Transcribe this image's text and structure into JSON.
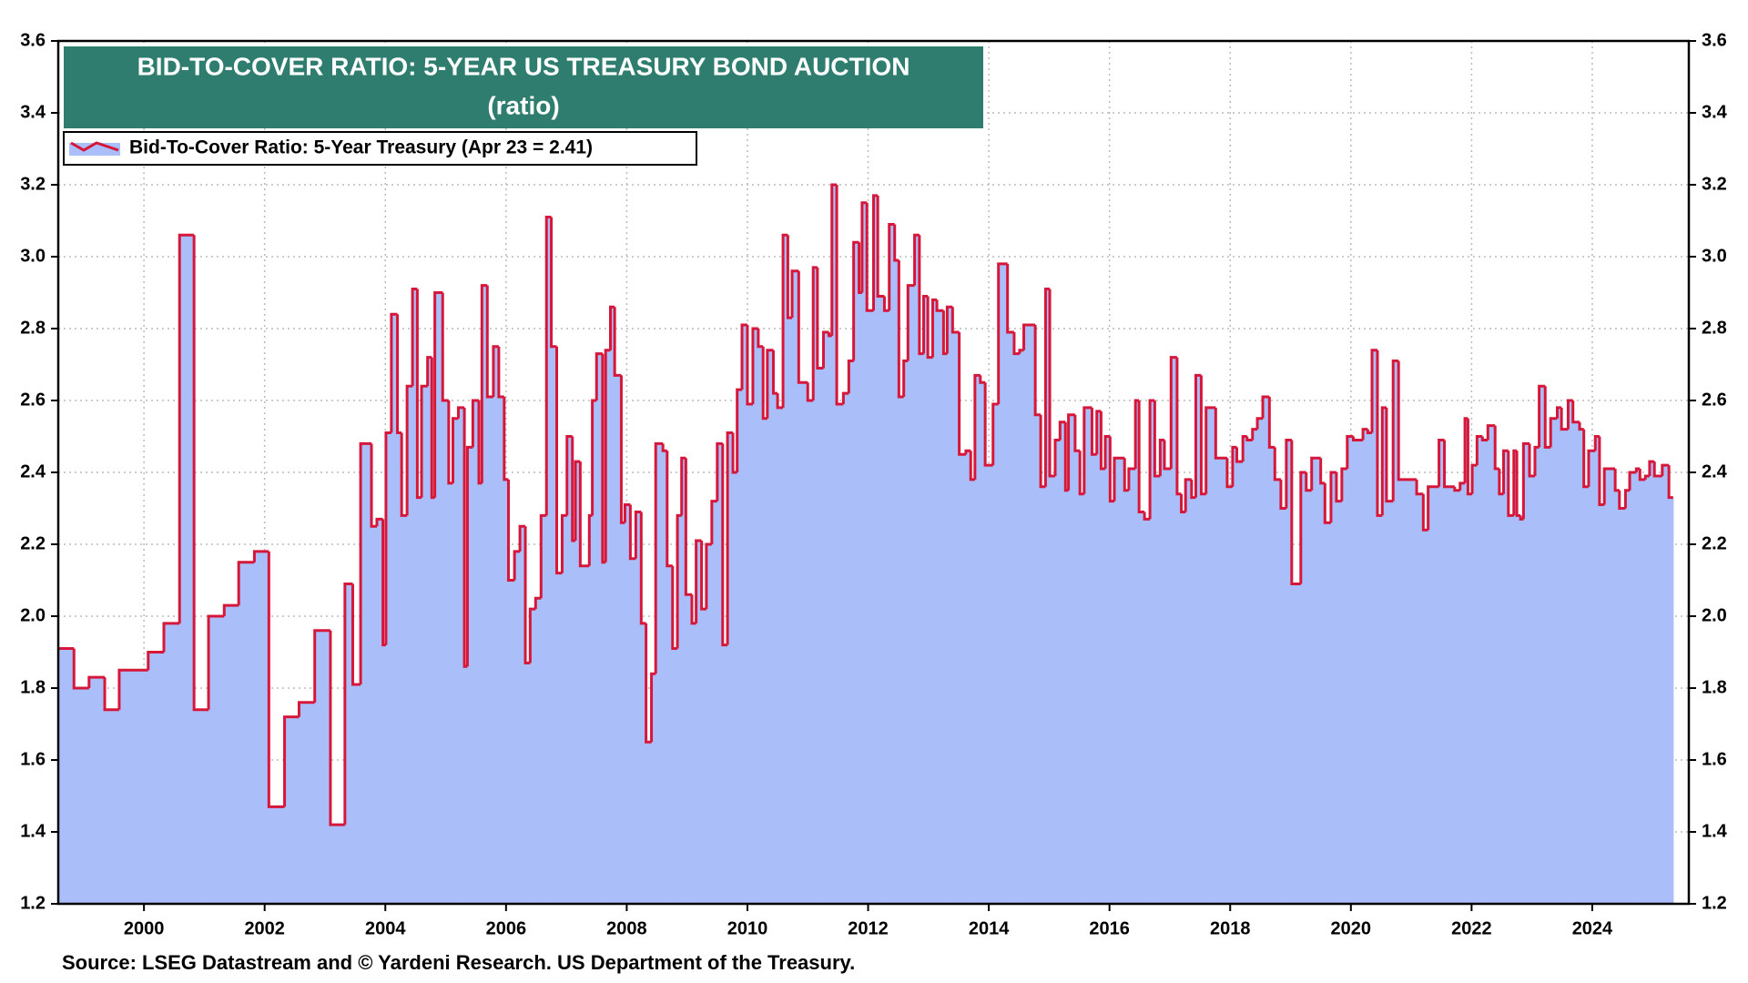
{
  "chart_data": {
    "type": "step-area",
    "title": "BID-TO-COVER RATIO: 5-YEAR US TREASURY BOND AUCTION",
    "subtitle": "(ratio)",
    "source": "Source: LSEG Datastream and © Yardeni Research. US Department of the Treasury.",
    "legend": "upper left",
    "grid": true,
    "x": [
      1998.58,
      1998.84,
      1999.09,
      1999.35,
      1999.59,
      2000.07,
      2000.33,
      2000.59,
      2000.83,
      2001.07,
      2001.33,
      2001.57,
      2001.83,
      2002.07,
      2002.33,
      2002.57,
      2002.83,
      2003.09,
      2003.33,
      2003.46,
      2003.59,
      2003.77,
      2003.86,
      2003.96,
      2004.01,
      2004.1,
      2004.2,
      2004.27,
      2004.36,
      2004.45,
      2004.53,
      2004.6,
      2004.7,
      2004.77,
      2004.82,
      2004.95,
      2005.05,
      2005.12,
      2005.21,
      2005.31,
      2005.36,
      2005.45,
      2005.55,
      2005.6,
      2005.69,
      2005.79,
      2005.88,
      2005.97,
      2006.04,
      2006.14,
      2006.23,
      2006.32,
      2006.4,
      2006.49,
      2006.58,
      2006.67,
      2006.75,
      2006.84,
      2006.93,
      2007.01,
      2007.1,
      2007.15,
      2007.23,
      2007.38,
      2007.43,
      2007.5,
      2007.6,
      2007.65,
      2007.73,
      2007.8,
      2007.91,
      2007.97,
      2008.06,
      2008.15,
      2008.24,
      2008.32,
      2008.41,
      2008.48,
      2008.6,
      2008.67,
      2008.76,
      2008.84,
      2008.91,
      2008.98,
      2009.08,
      2009.15,
      2009.24,
      2009.32,
      2009.41,
      2009.5,
      2009.59,
      2009.67,
      2009.76,
      2009.83,
      2009.91,
      2010.0,
      2010.09,
      2010.18,
      2010.26,
      2010.33,
      2010.43,
      2010.5,
      2010.59,
      2010.67,
      2010.74,
      2010.85,
      2011.0,
      2011.09,
      2011.16,
      2011.26,
      2011.35,
      2011.4,
      2011.48,
      2011.59,
      2011.68,
      2011.76,
      2011.85,
      2011.9,
      2011.98,
      2012.09,
      2012.16,
      2012.27,
      2012.35,
      2012.44,
      2012.51,
      2012.59,
      2012.66,
      2012.77,
      2012.85,
      2012.92,
      2012.99,
      2013.07,
      2013.14,
      2013.25,
      2013.31,
      2013.4,
      2013.51,
      2013.62,
      2013.7,
      2013.77,
      2013.86,
      2013.94,
      2014.07,
      2014.16,
      2014.31,
      2014.42,
      2014.51,
      2014.58,
      2014.77,
      2014.86,
      2014.94,
      2015.01,
      2015.1,
      2015.18,
      2015.27,
      2015.32,
      2015.43,
      2015.51,
      2015.58,
      2015.71,
      2015.79,
      2015.86,
      2015.93,
      2016.01,
      2016.08,
      2016.25,
      2016.32,
      2016.43,
      2016.49,
      2016.58,
      2016.67,
      2016.75,
      2016.84,
      2016.91,
      2017.02,
      2017.12,
      2017.19,
      2017.26,
      2017.36,
      2017.43,
      2017.52,
      2017.6,
      2017.76,
      2017.95,
      2018.04,
      2018.11,
      2018.21,
      2018.28,
      2018.37,
      2018.45,
      2018.54,
      2018.65,
      2018.74,
      2018.84,
      2018.93,
      2019.02,
      2019.17,
      2019.26,
      2019.35,
      2019.5,
      2019.57,
      2019.67,
      2019.76,
      2019.85,
      2019.94,
      2020.04,
      2020.2,
      2020.28,
      2020.35,
      2020.44,
      2020.52,
      2020.59,
      2020.7,
      2020.79,
      2021.09,
      2021.2,
      2021.28,
      2021.46,
      2021.55,
      2021.72,
      2021.81,
      2021.89,
      2021.94,
      2022.01,
      2022.09,
      2022.18,
      2022.27,
      2022.39,
      2022.46,
      2022.53,
      2022.61,
      2022.7,
      2022.75,
      2022.81,
      2022.86,
      2022.96,
      2023.05,
      2023.12,
      2023.22,
      2023.31,
      2023.42,
      2023.49,
      2023.6,
      2023.68,
      2023.79,
      2023.86,
      2023.94,
      2024.05,
      2024.12,
      2024.2,
      2024.38,
      2024.45,
      2024.55,
      2024.62,
      2024.73,
      2024.79,
      2024.88,
      2024.95,
      2025.03,
      2025.16,
      2025.27,
      2025.34
    ],
    "series": [
      {
        "name": "Bid-To-Cover Ratio: 5-Year Treasury (Apr 23 = 2.41)",
        "color": "#d6173a",
        "fill": "#aabffa",
        "values": [
          1.91,
          1.8,
          1.83,
          1.74,
          1.85,
          1.9,
          1.98,
          3.06,
          1.74,
          2.0,
          2.03,
          2.15,
          2.18,
          1.47,
          1.72,
          1.76,
          1.96,
          1.42,
          2.09,
          1.81,
          2.48,
          2.25,
          2.27,
          1.92,
          2.51,
          2.84,
          2.51,
          2.28,
          2.64,
          2.91,
          2.33,
          2.64,
          2.72,
          2.33,
          2.9,
          2.6,
          2.37,
          2.55,
          2.58,
          1.86,
          2.47,
          2.6,
          2.37,
          2.92,
          2.61,
          2.75,
          2.61,
          2.38,
          2.1,
          2.18,
          2.25,
          1.87,
          2.02,
          2.05,
          2.28,
          3.11,
          2.75,
          2.12,
          2.28,
          2.5,
          2.21,
          2.43,
          2.14,
          2.28,
          2.6,
          2.73,
          2.15,
          2.74,
          2.86,
          2.67,
          2.26,
          2.31,
          2.16,
          2.29,
          1.98,
          1.65,
          1.84,
          2.48,
          2.46,
          2.14,
          1.91,
          2.28,
          2.44,
          2.06,
          1.98,
          2.21,
          2.02,
          2.2,
          2.32,
          2.48,
          1.92,
          2.51,
          2.4,
          2.63,
          2.81,
          2.59,
          2.8,
          2.75,
          2.55,
          2.74,
          2.62,
          2.58,
          3.06,
          2.83,
          2.96,
          2.65,
          2.6,
          2.97,
          2.69,
          2.79,
          2.78,
          3.2,
          2.59,
          2.62,
          2.71,
          3.04,
          2.9,
          3.15,
          2.85,
          3.17,
          2.89,
          2.85,
          3.09,
          2.99,
          2.61,
          2.71,
          2.92,
          3.06,
          2.73,
          2.89,
          2.72,
          2.88,
          2.85,
          2.73,
          2.86,
          2.79,
          2.45,
          2.46,
          2.38,
          2.67,
          2.65,
          2.42,
          2.59,
          2.98,
          2.79,
          2.73,
          2.74,
          2.81,
          2.56,
          2.36,
          2.91,
          2.39,
          2.49,
          2.54,
          2.35,
          2.56,
          2.46,
          2.34,
          2.58,
          2.45,
          2.57,
          2.41,
          2.5,
          2.32,
          2.44,
          2.35,
          2.41,
          2.6,
          2.29,
          2.27,
          2.6,
          2.39,
          2.49,
          2.41,
          2.72,
          2.34,
          2.29,
          2.38,
          2.33,
          2.67,
          2.34,
          2.58,
          2.44,
          2.36,
          2.47,
          2.43,
          2.5,
          2.49,
          2.52,
          2.55,
          2.61,
          2.47,
          2.38,
          2.3,
          2.49,
          2.09,
          2.4,
          2.35,
          2.44,
          2.37,
          2.26,
          2.4,
          2.32,
          2.41,
          2.5,
          2.49,
          2.52,
          2.51,
          2.74,
          2.28,
          2.58,
          2.32,
          2.71,
          2.38,
          2.34,
          2.24,
          2.36,
          2.49,
          2.36,
          2.35,
          2.37,
          2.55,
          2.34,
          2.42,
          2.5,
          2.49,
          2.53,
          2.41,
          2.34,
          2.46,
          2.28,
          2.46,
          2.28,
          2.27,
          2.48,
          2.39,
          2.47,
          2.64,
          2.47,
          2.55,
          2.58,
          2.52,
          2.6,
          2.54,
          2.52,
          2.36,
          2.46,
          2.5,
          2.31,
          2.41,
          2.35,
          2.3,
          2.35,
          2.4,
          2.41,
          2.38,
          2.39,
          2.43,
          2.39,
          2.42,
          2.33,
          2.33
        ]
      }
    ],
    "xlim": [
      1998.58,
      2025.6
    ],
    "xticks": [
      2000,
      2002,
      2004,
      2006,
      2008,
      2010,
      2012,
      2014,
      2016,
      2018,
      2020,
      2022,
      2024
    ],
    "ylim": [
      1.2,
      3.6
    ],
    "yticks": [
      1.2,
      1.4,
      1.6,
      1.8,
      {
        "value": 2,
        "label": "2.0"
      },
      2.2,
      2.4,
      2.6,
      2.8,
      {
        "value": 3,
        "label": "3.0"
      },
      3.2,
      3.4,
      3.6
    ]
  }
}
